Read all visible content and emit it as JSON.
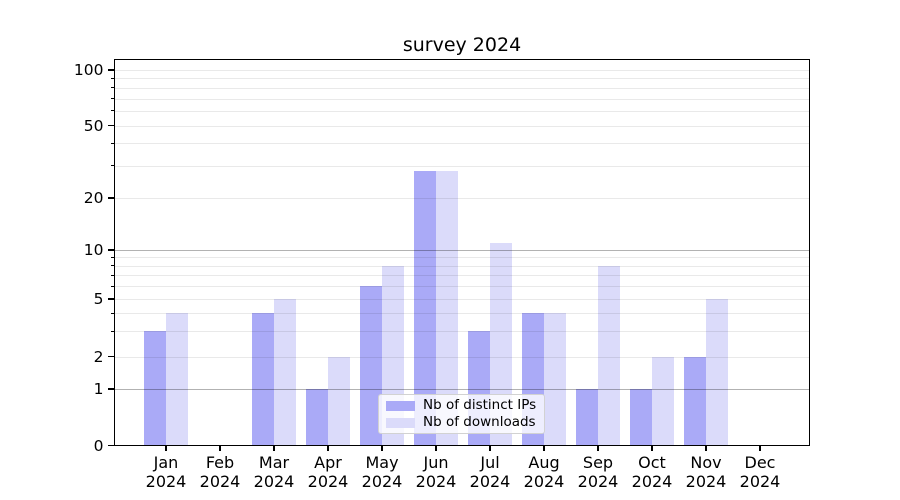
{
  "chart_data": {
    "type": "bar",
    "title": "survey 2024",
    "categories": [
      "Jan",
      "Feb",
      "Mar",
      "Apr",
      "May",
      "Jun",
      "Jul",
      "Aug",
      "Sep",
      "Oct",
      "Nov",
      "Dec"
    ],
    "year_label": "2024",
    "series": [
      {
        "name": "Nb of distinct IPs",
        "color": "#aaaaf7",
        "values": [
          3,
          0,
          4,
          1,
          6,
          28,
          3,
          4,
          1,
          1,
          2,
          0
        ]
      },
      {
        "name": "Nb of downloads",
        "color": "#dbdbfa",
        "values": [
          4,
          0,
          5,
          2,
          8,
          28,
          11,
          4,
          8,
          2,
          5,
          0
        ]
      }
    ],
    "y_axis": {
      "tick_labels": [
        "0",
        "1",
        "2",
        "5",
        "10",
        "20",
        "50",
        "100"
      ],
      "tick_values": [
        0,
        1,
        2,
        5,
        10,
        20,
        50,
        100
      ],
      "minor_tick_values": [
        3,
        4,
        6,
        7,
        8,
        9,
        30,
        40,
        60,
        70,
        80,
        90
      ],
      "emphasized_gridlines": [
        1,
        10
      ],
      "scale": "log-like",
      "range": [
        0,
        100
      ]
    },
    "x_axis": {
      "tick_count": 12
    },
    "legend_position": "lower center inside plot",
    "grid": "horizontal",
    "colors": {
      "grid_light": "rgba(0,0,0,0.085)",
      "grid_emphasized": "rgba(0,0,0,0.30)",
      "axis": "#000000",
      "background": "#ffffff"
    }
  }
}
